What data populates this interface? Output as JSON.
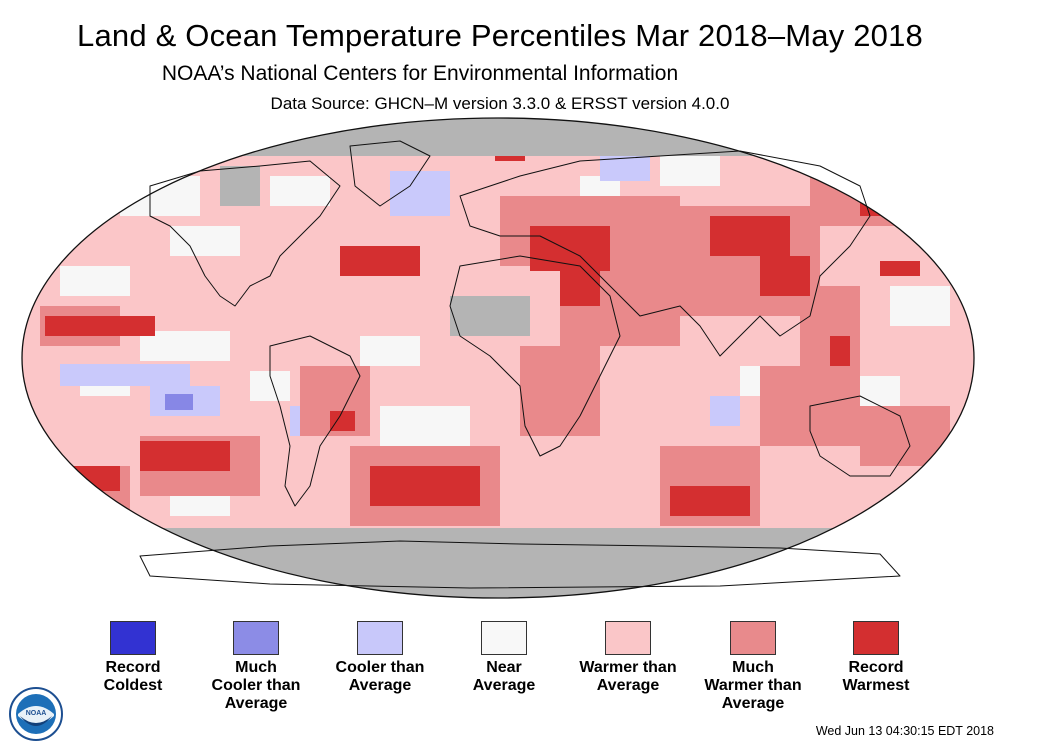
{
  "header": {
    "title": "Land & Ocean Temperature Percentiles Mar 2018–May 2018",
    "subtitle": "NOAA’s National Centers for Environmental Information",
    "source": "Data Source: GHCN–M version 3.3.0 & ERSST version 4.0.0"
  },
  "map": {
    "projection": "Robinson",
    "no_data_color": "#b4b4b4",
    "colors": {
      "warmer": "#fbc6c8",
      "much_warmer": "#e9898b",
      "record_warm": "#d42f30",
      "near": "#f7f7f7",
      "cooler": "#c9c9fb",
      "much_cooler": "#8787e6"
    }
  },
  "legend": {
    "items": [
      {
        "label": "Record\nColdest",
        "color": "#3232d2"
      },
      {
        "label": "Much\nCooler than\nAverage",
        "color": "#8c8ce6"
      },
      {
        "label": "Cooler than\nAverage",
        "color": "#c8c8fa"
      },
      {
        "label": "Near\nAverage",
        "color": "#f8f8f8"
      },
      {
        "label": "Warmer than\nAverage",
        "color": "#fac6c8"
      },
      {
        "label": "Much\nWarmer than\nAverage",
        "color": "#e88a8c"
      },
      {
        "label": "Record\nWarmest",
        "color": "#d32f30"
      }
    ]
  },
  "footer": {
    "timestamp": "Wed Jun 13 04:30:15 EDT 2018",
    "logo_text": "NOAA"
  }
}
